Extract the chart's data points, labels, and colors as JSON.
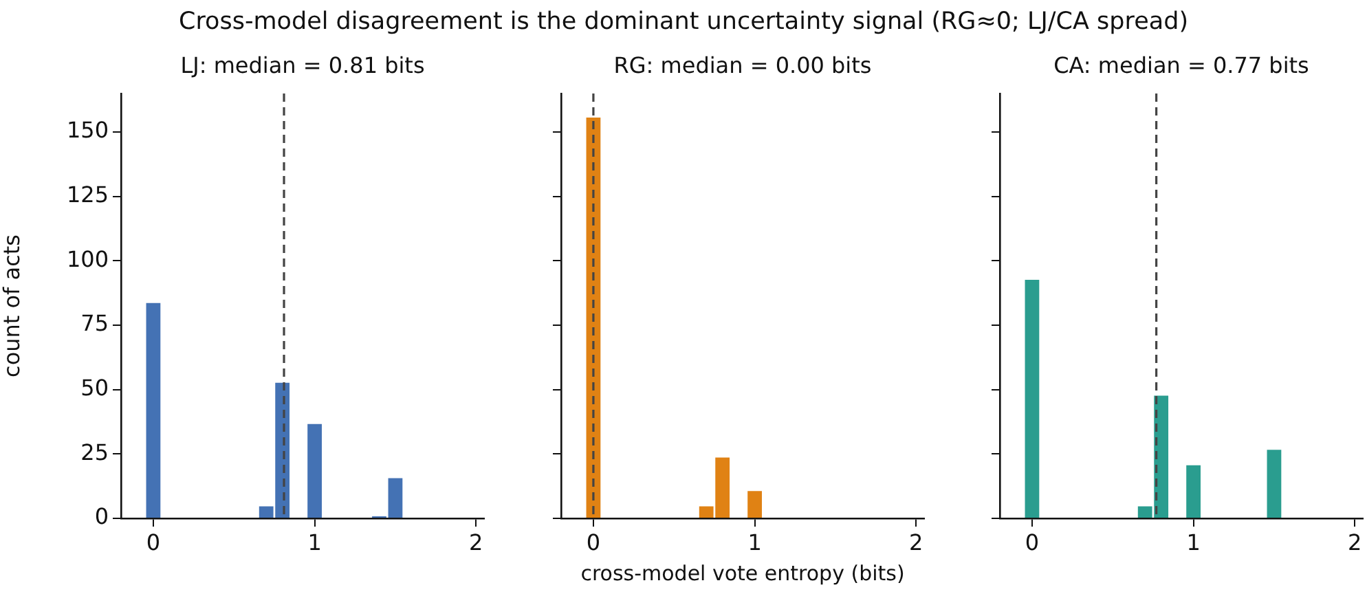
{
  "chart_data": [
    {
      "type": "histogram",
      "title": "LJ: median = 0.81 bits",
      "ylabel": "count of acts",
      "annotations": [
        "Cross-model disagreement is the dominant uncertainty signal (RG≈0; LJ/CA spread)"
      ],
      "bins": [
        -0.05,
        0.05,
        0.15,
        0.25,
        0.35,
        0.45,
        0.55,
        0.65,
        0.75,
        0.85,
        0.95,
        1.05,
        1.15,
        1.25,
        1.35,
        1.45,
        1.55
      ],
      "values": [
        84,
        0,
        0,
        0,
        0,
        0,
        0,
        5,
        53,
        0,
        37,
        0,
        0,
        0,
        1,
        16
      ],
      "color": "#4472b4",
      "xlim": [
        -0.2,
        2.05
      ],
      "xticks": [
        0,
        1,
        2
      ],
      "ylim": [
        0,
        165
      ],
      "yticks": [
        0,
        25,
        50,
        75,
        100,
        125,
        150
      ],
      "ref_lines": [
        {
          "axis": "x",
          "value": 0.81,
          "color": "#444444",
          "line_style": "dashed"
        }
      ]
    },
    {
      "type": "histogram",
      "title": "RG: median = 0.00 bits",
      "xlabel": "cross-model vote entropy (bits)",
      "bins": [
        -0.05,
        0.05,
        0.15,
        0.25,
        0.35,
        0.45,
        0.55,
        0.65,
        0.75,
        0.85,
        0.95,
        1.05
      ],
      "values": [
        156,
        0,
        0,
        0,
        0,
        0,
        0,
        5,
        24,
        0,
        11
      ],
      "color": "#e08214",
      "xlim": [
        -0.2,
        2.05
      ],
      "xticks": [
        0,
        1,
        2
      ],
      "ylim": [
        0,
        165
      ],
      "yticks": [
        0,
        25,
        50,
        75,
        100,
        125,
        150
      ],
      "tick_labels": "x",
      "ref_lines": [
        {
          "axis": "x",
          "value": 0,
          "color": "#444444",
          "line_style": "dashed"
        }
      ]
    },
    {
      "type": "histogram",
      "title": "CA: median = 0.77 bits",
      "bins": [
        -0.05,
        0.05,
        0.15,
        0.25,
        0.35,
        0.45,
        0.55,
        0.65,
        0.75,
        0.85,
        0.95,
        1.05,
        1.15,
        1.25,
        1.35,
        1.45,
        1.55
      ],
      "values": [
        93,
        0,
        0,
        0,
        0,
        0,
        0,
        5,
        48,
        0,
        21,
        0,
        0,
        0,
        0,
        27
      ],
      "color": "#2a9d8f",
      "xlim": [
        -0.2,
        2.05
      ],
      "xticks": [
        0,
        1,
        2
      ],
      "ylim": [
        0,
        165
      ],
      "yticks": [
        0,
        25,
        50,
        75,
        100,
        125,
        150
      ],
      "tick_labels": "x",
      "ref_lines": [
        {
          "axis": "x",
          "value": 0.77,
          "color": "#444444",
          "line_style": "dashed"
        }
      ]
    }
  ]
}
